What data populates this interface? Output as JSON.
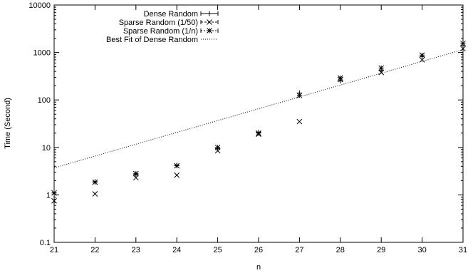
{
  "chart_data": {
    "type": "scatter",
    "xlabel": "n",
    "ylabel": "Time (Second)",
    "x_scale": "linear",
    "y_scale": "log",
    "xlim": [
      21,
      31
    ],
    "ylim": [
      0.1,
      10000
    ],
    "x_ticks": [
      "21",
      "22",
      "23",
      "24",
      "25",
      "26",
      "27",
      "28",
      "29",
      "30",
      "31"
    ],
    "y_ticks": [
      "0.1",
      "1",
      "10",
      "100",
      "1000",
      "10000"
    ],
    "grid": false,
    "legend_position": "top-left",
    "series": [
      {
        "name": "Dense Random",
        "marker": "plus",
        "points": [
          {
            "x": 21,
            "y": 1.1
          },
          {
            "x": 22,
            "y": 1.9
          },
          {
            "x": 23,
            "y": 2.7
          },
          {
            "x": 24,
            "y": 4.2
          },
          {
            "x": 25,
            "y": 9.5
          },
          {
            "x": 26,
            "y": 21
          },
          {
            "x": 27,
            "y": 140
          },
          {
            "x": 28,
            "y": 250
          },
          {
            "x": 29,
            "y": 420
          },
          {
            "x": 30,
            "y": 820
          },
          {
            "x": 31,
            "y": 1400
          }
        ]
      },
      {
        "name": "Sparse Random (1/50)",
        "marker": "cross",
        "points": [
          {
            "x": 21,
            "y": 0.75
          },
          {
            "x": 22,
            "y": 1.05
          },
          {
            "x": 23,
            "y": 2.3
          },
          {
            "x": 24,
            "y": 2.6
          },
          {
            "x": 25,
            "y": 8.5
          },
          {
            "x": 26,
            "y": 19
          },
          {
            "x": 27,
            "y": 35
          },
          {
            "x": 28,
            "y": 270
          },
          {
            "x": 29,
            "y": 380
          },
          {
            "x": 30,
            "y": 700
          },
          {
            "x": 31,
            "y": 1200
          }
        ]
      },
      {
        "name": "Sparse Random (1/n)",
        "marker": "star",
        "points": [
          {
            "x": 21,
            "y": 1.1
          },
          {
            "x": 22,
            "y": 1.85
          },
          {
            "x": 23,
            "y": 2.8
          },
          {
            "x": 24,
            "y": 4.1
          },
          {
            "x": 25,
            "y": 10
          },
          {
            "x": 26,
            "y": 20
          },
          {
            "x": 27,
            "y": 125
          },
          {
            "x": 28,
            "y": 290
          },
          {
            "x": 29,
            "y": 470
          },
          {
            "x": 30,
            "y": 880
          },
          {
            "x": 31,
            "y": 1550
          }
        ]
      },
      {
        "name": "Best Fit of Dense Random",
        "type": "line",
        "style": "dotted",
        "points": [
          {
            "x": 21,
            "y": 3.7
          },
          {
            "x": 31,
            "y": 1150
          }
        ]
      }
    ]
  }
}
